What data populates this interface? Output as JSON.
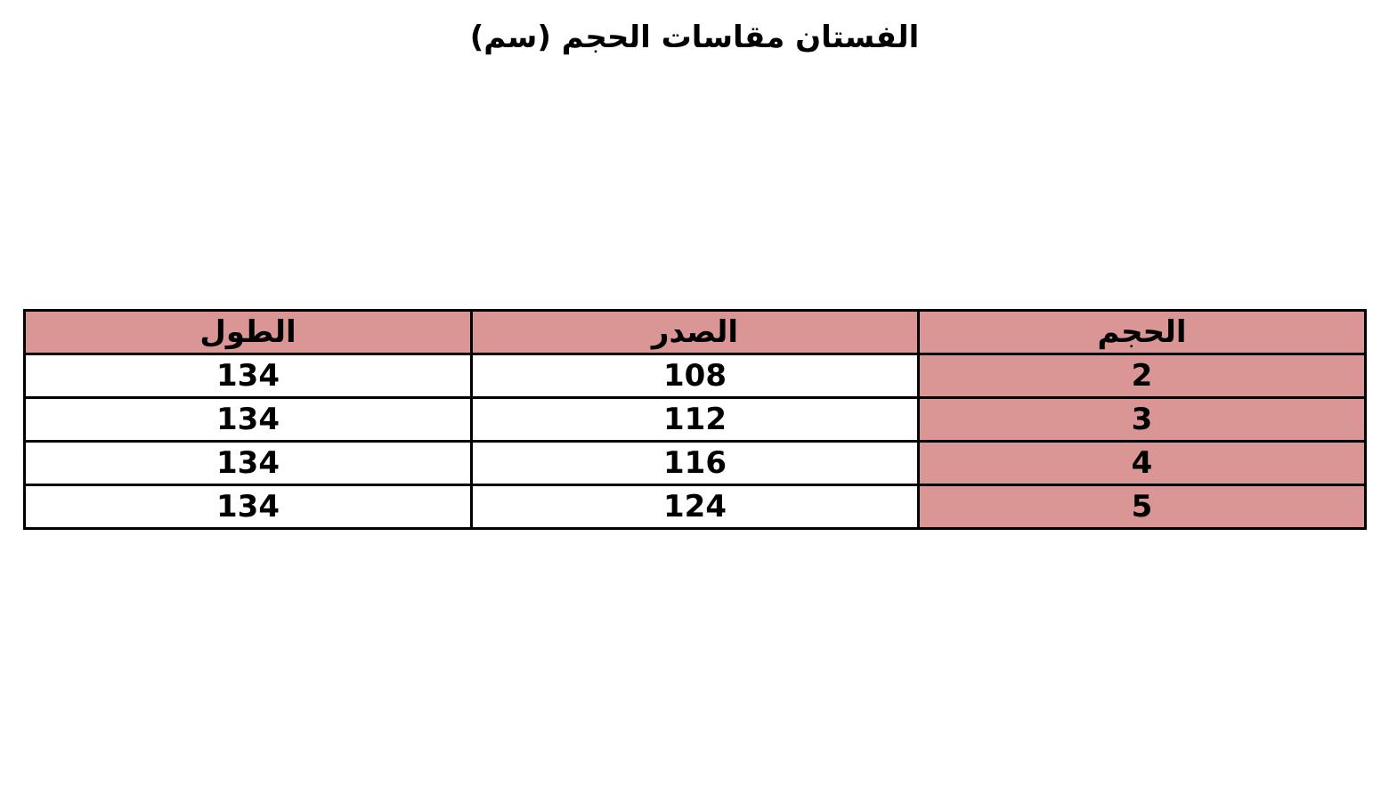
{
  "chart_data": {
    "type": "table",
    "title": "الفستان مقاسات الحجم (سم)",
    "columns": [
      "الحجم",
      "الصدر",
      "الطول"
    ],
    "rows": [
      [
        "2",
        "108",
        "134"
      ],
      [
        "3",
        "112",
        "134"
      ],
      [
        "4",
        "116",
        "134"
      ],
      [
        "5",
        "124",
        "134"
      ]
    ],
    "header_color": "#d99694",
    "key_column_color": "#d99694",
    "cell_color": "#ffffff"
  }
}
